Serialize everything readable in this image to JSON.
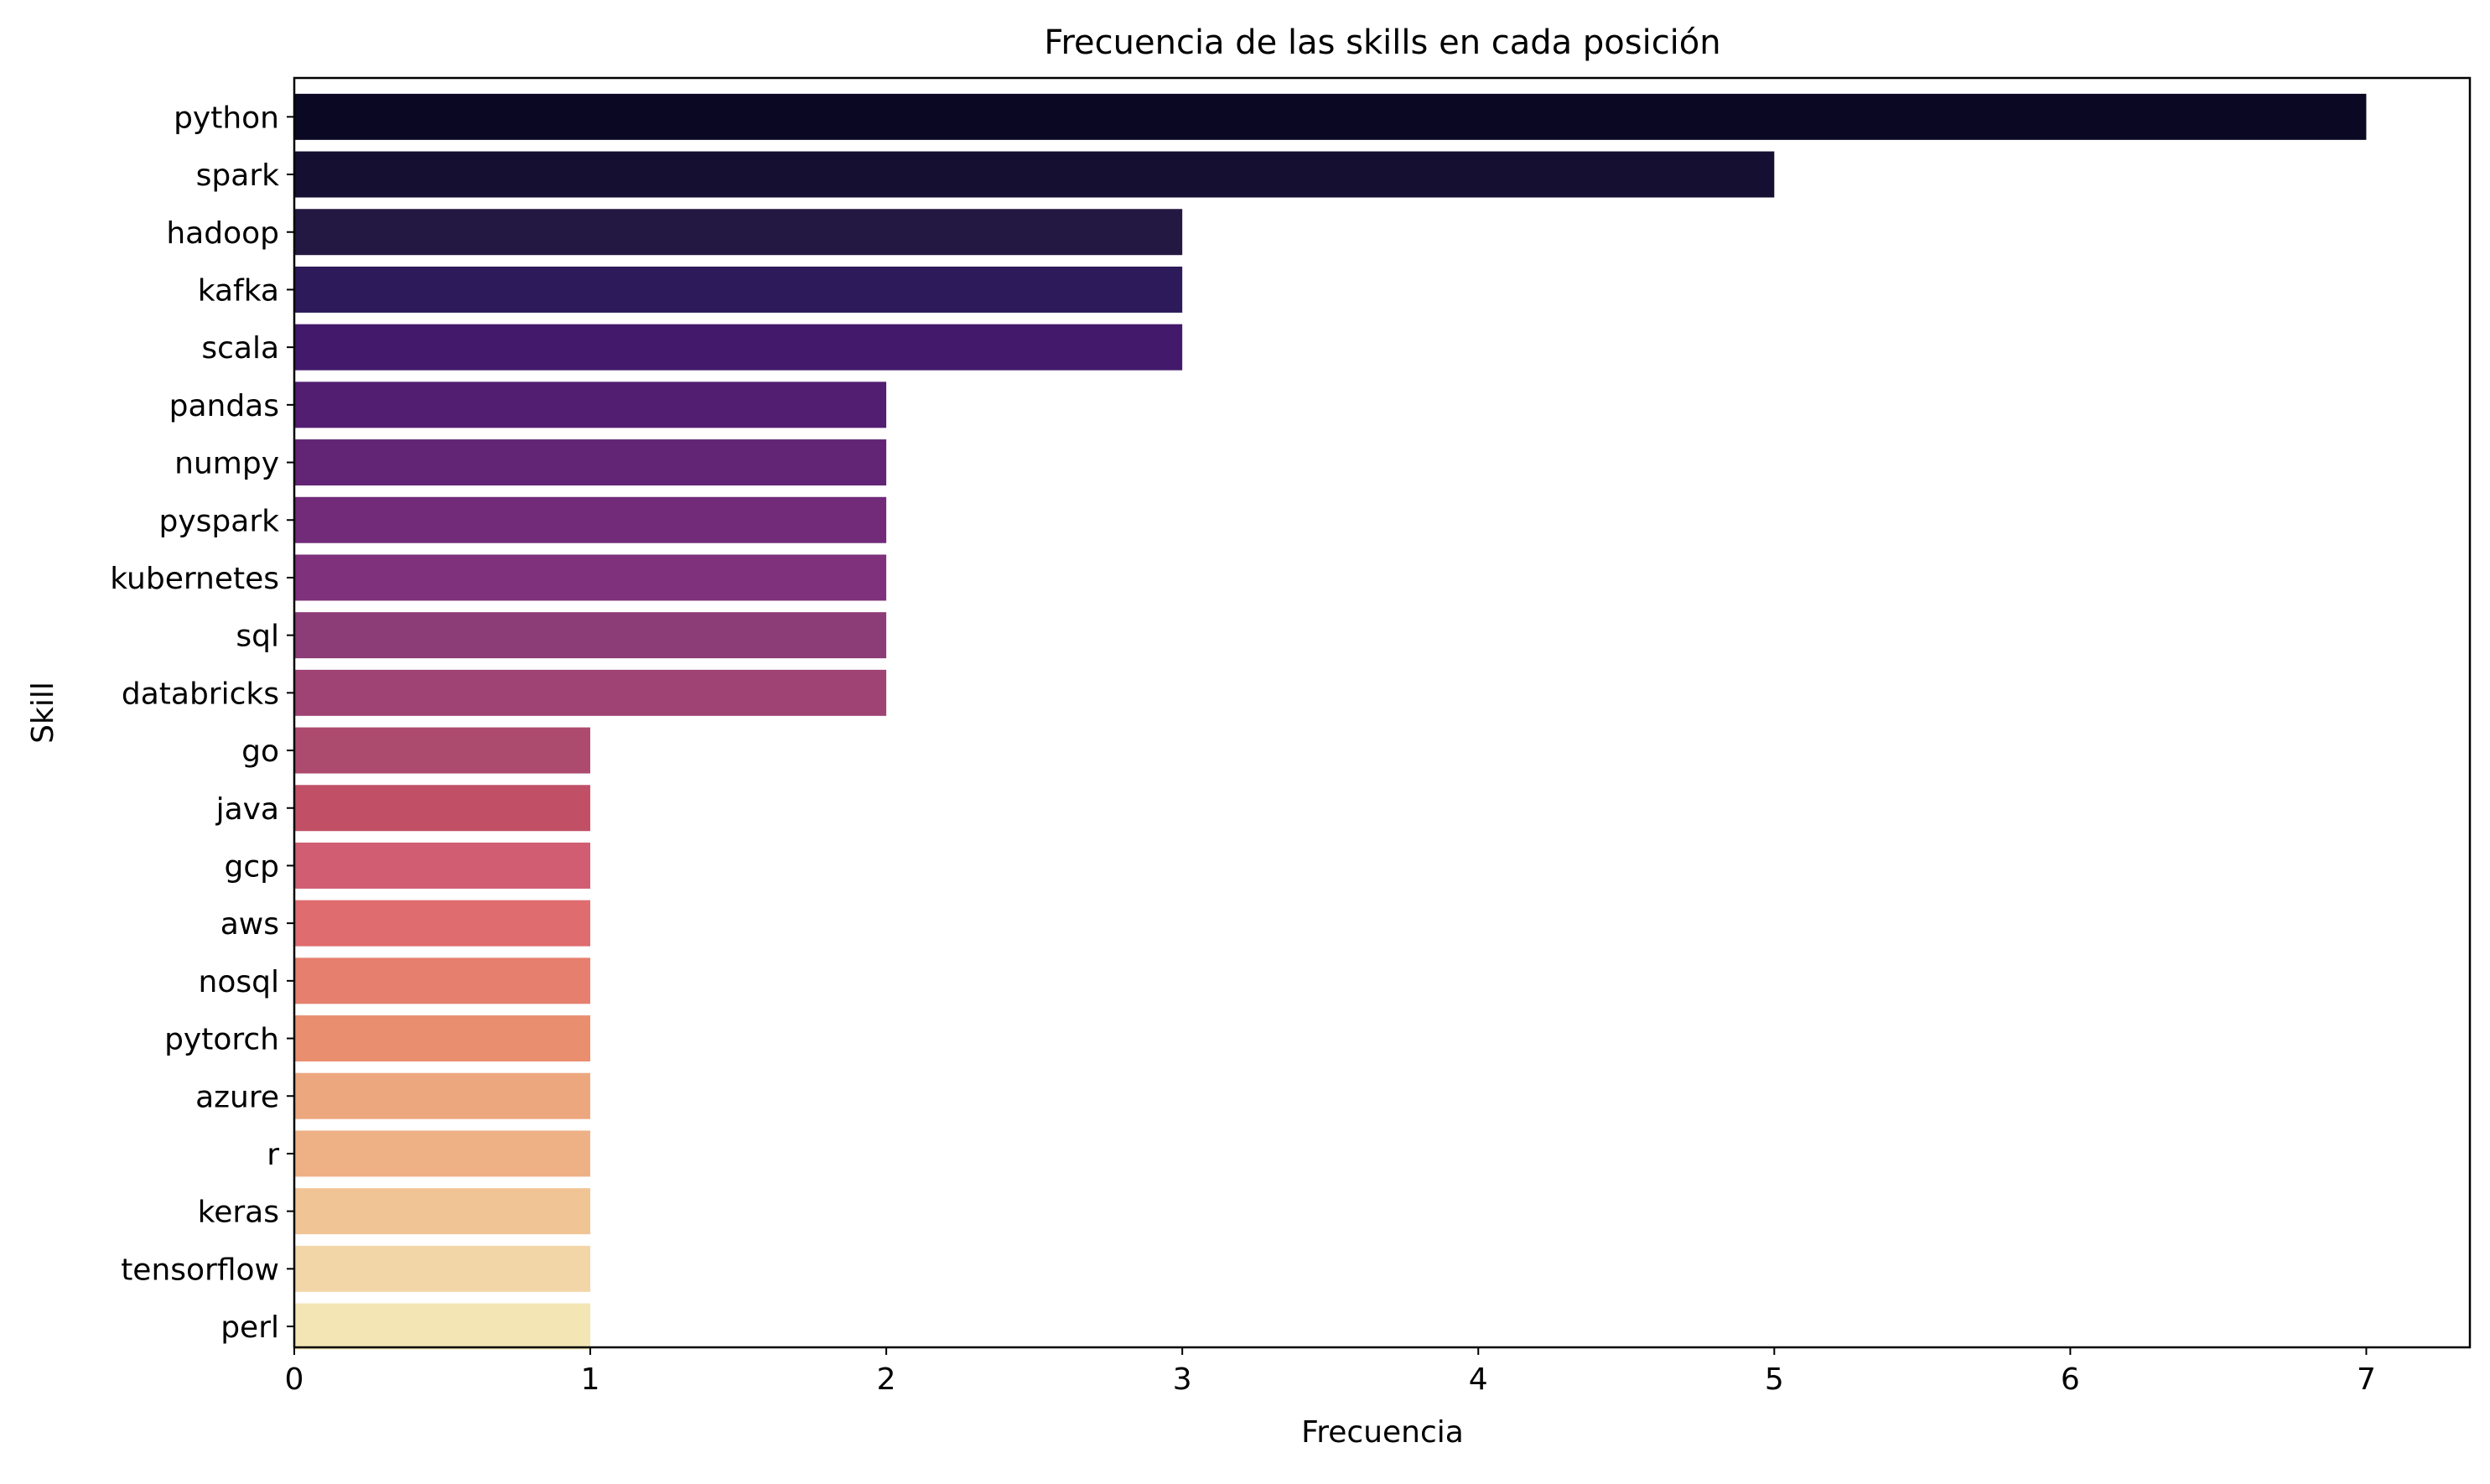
{
  "chart_data": {
    "type": "bar",
    "orientation": "horizontal",
    "title": "Frecuencia de las skills en cada posición",
    "xlabel": "Frecuencia",
    "ylabel": "Skill",
    "xlim": [
      0,
      7.35
    ],
    "xticks": [
      0,
      1,
      2,
      3,
      4,
      5,
      6,
      7
    ],
    "grid": false,
    "legend": "none",
    "colormap": "magma",
    "categories": [
      "python",
      "spark",
      "hadoop",
      "kafka",
      "scala",
      "pandas",
      "numpy",
      "pyspark",
      "kubernetes",
      "sql",
      "databricks",
      "go",
      "java",
      "gcp",
      "aws",
      "nosql",
      "pytorch",
      "azure",
      "r",
      "keras",
      "tensorflow",
      "perl"
    ],
    "values": [
      7,
      5,
      3,
      3,
      3,
      2,
      2,
      2,
      2,
      2,
      2,
      1,
      1,
      1,
      1,
      1,
      1,
      1,
      1,
      1,
      1,
      1
    ],
    "colors": [
      "#0a0822",
      "#150f31",
      "#231842",
      "#2c1a5a",
      "#431a6b",
      "#521e71",
      "#622474",
      "#712b79",
      "#7f317b",
      "#8c3c77",
      "#9f4374",
      "#ad4b6f",
      "#c15066",
      "#d05d71",
      "#df6c6e",
      "#e67f6e",
      "#e98f6f",
      "#eca77f",
      "#eeb185",
      "#f1c496",
      "#f3d6a8",
      "#f3e5b4"
    ]
  }
}
